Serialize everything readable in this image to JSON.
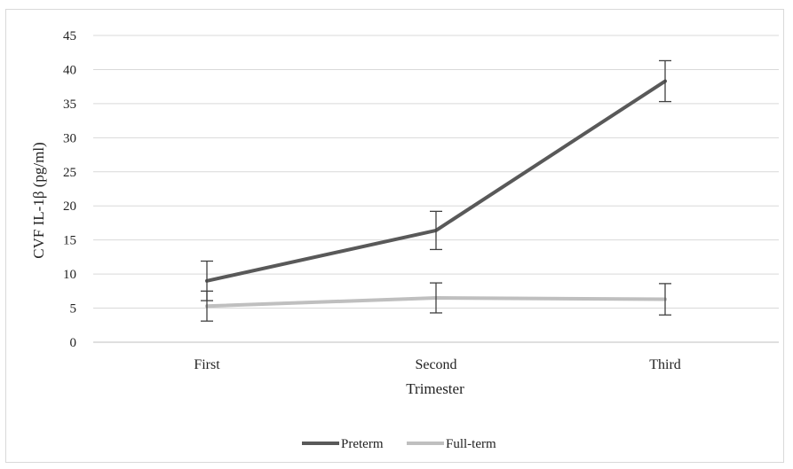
{
  "chart_data": {
    "type": "line",
    "title": "",
    "xlabel": "Trimester",
    "ylabel": "CVF IL-1β (pg/ml)",
    "categories": [
      "First",
      "Second",
      "Third"
    ],
    "ylim": [
      0,
      45
    ],
    "yticks": [
      0,
      5,
      10,
      15,
      20,
      25,
      30,
      35,
      40,
      45
    ],
    "grid": true,
    "legend_position": "bottom",
    "series": [
      {
        "name": "Preterm",
        "color": "#595959",
        "values": [
          9.0,
          16.4,
          38.3
        ],
        "error": [
          2.9,
          2.8,
          3.0
        ]
      },
      {
        "name": "Full-term",
        "color": "#bfbfbf",
        "values": [
          5.3,
          6.5,
          6.3
        ],
        "error": [
          2.2,
          2.2,
          2.3
        ]
      }
    ]
  }
}
